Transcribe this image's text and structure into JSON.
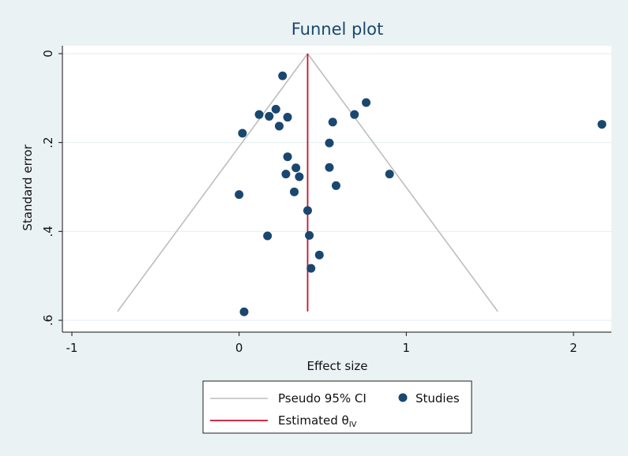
{
  "chart_data": {
    "type": "scatter",
    "title": "Funnel plot",
    "xlabel": "Effect size",
    "ylabel": "Standard error",
    "xlim": [
      -1,
      2.22
    ],
    "ylim": [
      0,
      0.6
    ],
    "y_reversed": true,
    "x_ticks": [
      -1,
      0,
      1,
      2
    ],
    "x_tick_labels": [
      "-1",
      "0",
      "1",
      "2"
    ],
    "y_ticks": [
      0,
      0.2,
      0.4,
      0.6
    ],
    "y_tick_labels": [
      "0",
      ".2",
      ".4",
      ".6"
    ],
    "grid": "horizontal",
    "estimated_theta": 0.41,
    "pseudo_ci_se_max": 0.58,
    "ci_multiplier": 1.96,
    "series": [
      {
        "name": "Studies",
        "color": "#1a476f",
        "points": [
          {
            "x": 0.26,
            "y": 0.05
          },
          {
            "x": 0.76,
            "y": 0.11
          },
          {
            "x": 0.22,
            "y": 0.125
          },
          {
            "x": 0.12,
            "y": 0.137
          },
          {
            "x": 0.18,
            "y": 0.141
          },
          {
            "x": 0.29,
            "y": 0.143
          },
          {
            "x": 0.69,
            "y": 0.137
          },
          {
            "x": 0.56,
            "y": 0.154
          },
          {
            "x": 0.24,
            "y": 0.163
          },
          {
            "x": 2.17,
            "y": 0.159
          },
          {
            "x": 0.02,
            "y": 0.179
          },
          {
            "x": 0.54,
            "y": 0.201
          },
          {
            "x": 0.29,
            "y": 0.232
          },
          {
            "x": 0.34,
            "y": 0.257
          },
          {
            "x": 0.54,
            "y": 0.256
          },
          {
            "x": 0.28,
            "y": 0.271
          },
          {
            "x": 0.36,
            "y": 0.277
          },
          {
            "x": 0.9,
            "y": 0.271
          },
          {
            "x": 0.58,
            "y": 0.297
          },
          {
            "x": 0.33,
            "y": 0.311
          },
          {
            "x": 0.0,
            "y": 0.317
          },
          {
            "x": 0.41,
            "y": 0.353
          },
          {
            "x": 0.17,
            "y": 0.41
          },
          {
            "x": 0.42,
            "y": 0.409
          },
          {
            "x": 0.48,
            "y": 0.453
          },
          {
            "x": 0.43,
            "y": 0.483
          },
          {
            "x": 0.03,
            "y": 0.581
          }
        ]
      }
    ],
    "legend": {
      "placement": "bottom",
      "ci_label": "Pseudo 95% CI",
      "studies_label": "Studies",
      "theta_label_prefix": "Estimated θ",
      "theta_label_sub": "IV"
    },
    "colors": {
      "background": "#eaf2f3",
      "plot_area": "#ffffff",
      "grid": "#e3eeee",
      "ci_line": "#bdbdbd",
      "theta_line": "#c8102e",
      "points": "#1a476f",
      "title": "#1a476f"
    }
  }
}
